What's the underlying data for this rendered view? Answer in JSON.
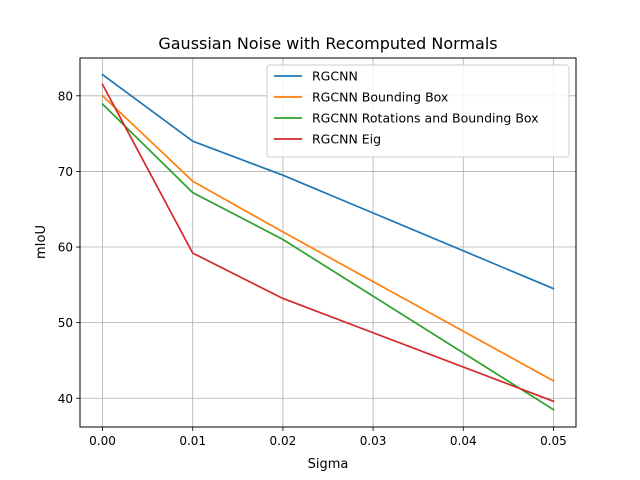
{
  "chart_data": {
    "type": "line",
    "title": "Gaussian Noise with Recomputed Normals",
    "xlabel": "Sigma",
    "ylabel": "mIoU",
    "x": [
      0.0,
      0.01,
      0.02,
      0.05
    ],
    "xlim": [
      -0.0025,
      0.0525
    ],
    "ylim": [
      36.2,
      85.0
    ],
    "xticks": [
      0.0,
      0.01,
      0.02,
      0.03,
      0.04,
      0.05
    ],
    "xtick_labels": [
      "0.00",
      "0.01",
      "0.02",
      "0.03",
      "0.04",
      "0.05"
    ],
    "yticks": [
      40,
      50,
      60,
      70,
      80
    ],
    "ytick_labels": [
      "40",
      "50",
      "60",
      "70",
      "80"
    ],
    "grid": true,
    "legend_position": "top-right",
    "series": [
      {
        "name": "RGCNN",
        "color": "#1f77b4",
        "values": [
          82.8,
          74.0,
          69.5,
          54.5
        ]
      },
      {
        "name": "RGCNN Bounding Box",
        "color": "#ff7f0e",
        "values": [
          80.0,
          68.7,
          62.0,
          42.3
        ]
      },
      {
        "name": "RGCNN Rotations and Bounding Box",
        "color": "#2ca02c",
        "values": [
          78.9,
          67.2,
          61.0,
          38.5
        ]
      },
      {
        "name": "RGCNN Eig",
        "color": "#d62728",
        "values": [
          81.5,
          59.2,
          53.2,
          39.6
        ]
      }
    ]
  }
}
